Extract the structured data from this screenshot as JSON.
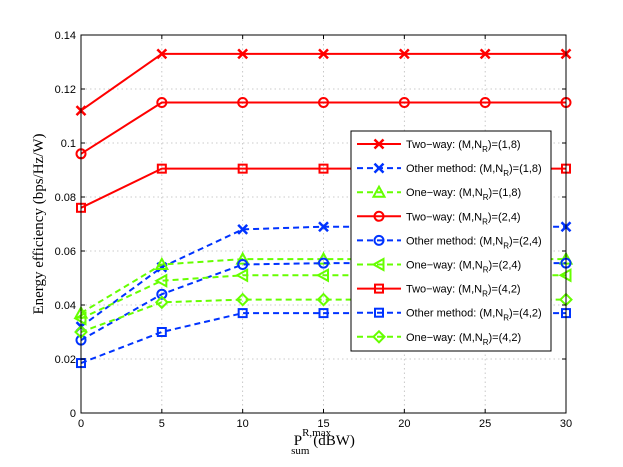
{
  "chart_data": {
    "type": "line",
    "title": "",
    "xlabel": {
      "main": "P",
      "sup": "R,max",
      "sub": "sum",
      "unit": " (dBW)"
    },
    "ylabel": "Energy efficiency (bps/Hz/W)",
    "xlim": [
      0,
      30
    ],
    "ylim": [
      0,
      0.14
    ],
    "xticks": [
      0,
      5,
      10,
      15,
      20,
      25,
      30
    ],
    "yticks": [
      0,
      0.02,
      0.04,
      0.06,
      0.08,
      0.1,
      0.12,
      0.14
    ],
    "xtick_labels": [
      "0",
      "5",
      "10",
      "15",
      "20",
      "25",
      "30"
    ],
    "ytick_labels": [
      "0",
      "0.02",
      "0.04",
      "0.06",
      "0.08",
      "0.1",
      "0.12",
      "0.14"
    ],
    "grid": true,
    "legend_position": "right",
    "x": [
      0,
      5,
      10,
      15,
      20,
      25,
      30
    ],
    "series": [
      {
        "name": "Two−way: (M,N_R)=(1,8)",
        "legend": {
          "prefix": "Two−way: (M,N",
          "sub": "R",
          "suffix": ")=(1,8)"
        },
        "color": "#ff0000",
        "dash": "solid",
        "marker": "x",
        "values": [
          0.112,
          0.133,
          0.133,
          0.133,
          0.133,
          0.133,
          0.133
        ]
      },
      {
        "name": "Other method: (M,N_R)=(1,8)",
        "legend": {
          "prefix": "Other method: (M,N",
          "sub": "R",
          "suffix": ")=(1,8)"
        },
        "color": "#0033ff",
        "dash": "dashed",
        "marker": "x",
        "values": [
          0.032,
          0.054,
          0.068,
          0.069,
          0.069,
          0.069,
          0.069
        ]
      },
      {
        "name": "One−way: (M,N_R)=(1,8)",
        "legend": {
          "prefix": "One−way: (M,N",
          "sub": "R",
          "suffix": ")=(1,8)"
        },
        "color": "#66ff00",
        "dash": "dashed",
        "marker": "triangle",
        "values": [
          0.037,
          0.055,
          0.057,
          0.057,
          0.057,
          0.057,
          0.057
        ]
      },
      {
        "name": "Two−way: (M,N_R)=(2,4)",
        "legend": {
          "prefix": "Two−way: (M,N",
          "sub": "R",
          "suffix": ")=(2,4)"
        },
        "color": "#ff0000",
        "dash": "solid",
        "marker": "circle",
        "values": [
          0.096,
          0.115,
          0.115,
          0.115,
          0.115,
          0.115,
          0.115
        ]
      },
      {
        "name": "Other method: (M,N_R)=(2,4)",
        "legend": {
          "prefix": "Other method: (M,N",
          "sub": "R",
          "suffix": ")=(2,4)"
        },
        "color": "#0033ff",
        "dash": "dashed",
        "marker": "circle",
        "values": [
          0.027,
          0.044,
          0.055,
          0.0555,
          0.0555,
          0.0555,
          0.0555
        ]
      },
      {
        "name": "One−way: (M,N_R)=(2,4)",
        "legend": {
          "prefix": "One−way: (M,N",
          "sub": "R",
          "suffix": ")=(2,4)"
        },
        "color": "#66ff00",
        "dash": "dashed",
        "marker": "triangle-left",
        "values": [
          0.035,
          0.049,
          0.051,
          0.051,
          0.051,
          0.051,
          0.051
        ]
      },
      {
        "name": "Two−way: (M,N_R)=(4,2)",
        "legend": {
          "prefix": "Two−way: (M,N",
          "sub": "R",
          "suffix": ")=(4,2)"
        },
        "color": "#ff0000",
        "dash": "solid",
        "marker": "square",
        "values": [
          0.076,
          0.0905,
          0.0905,
          0.0905,
          0.0905,
          0.0905,
          0.0905
        ]
      },
      {
        "name": "Other method: (M,N_R)=(4,2)",
        "legend": {
          "prefix": "Other method: (M,N",
          "sub": "R",
          "suffix": ")=(4,2)"
        },
        "color": "#0033ff",
        "dash": "dashed",
        "marker": "square",
        "values": [
          0.0185,
          0.03,
          0.037,
          0.037,
          0.037,
          0.037,
          0.037
        ]
      },
      {
        "name": "One−way: (M,N_R)=(4,2)",
        "legend": {
          "prefix": "One−way: (M,N",
          "sub": "R",
          "suffix": ")=(4,2)"
        },
        "color": "#66ff00",
        "dash": "dashed",
        "marker": "diamond",
        "values": [
          0.03,
          0.041,
          0.042,
          0.042,
          0.042,
          0.042,
          0.042
        ]
      }
    ]
  }
}
